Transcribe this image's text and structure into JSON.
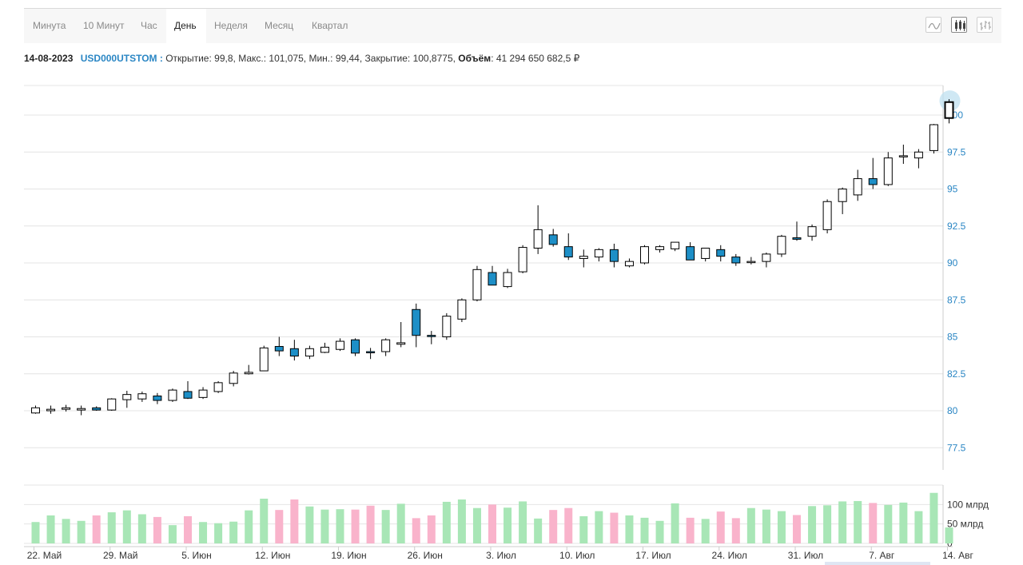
{
  "tabs": [
    {
      "label": "Минута",
      "active": false
    },
    {
      "label": "10 Минут",
      "active": false
    },
    {
      "label": "Час",
      "active": false
    },
    {
      "label": "День",
      "active": true
    },
    {
      "label": "Неделя",
      "active": false
    },
    {
      "label": "Месяц",
      "active": false
    },
    {
      "label": "Квартал",
      "active": false
    }
  ],
  "chart_types": [
    {
      "name": "line-chart-icon"
    },
    {
      "name": "candlestick-chart-icon",
      "active": true
    },
    {
      "name": "bar-chart-icon"
    }
  ],
  "info": {
    "date": "14-08-2023",
    "ticker": "USD000UTSTOM :",
    "open_label": "Открытие:",
    "open": "99,8,",
    "high_label": "Макс.:",
    "high": "101,075,",
    "low_label": "Мин.:",
    "low": "99,44,",
    "close_label": "Закрытие:",
    "close": "100,8775,",
    "volume_label": "Объём",
    "volume": ": 41 294 650 682,5 ₽"
  },
  "colors": {
    "up_fill": "#ffffff",
    "down_fill": "#1d8fc7",
    "vol_up": "#a8e6b6",
    "vol_down": "#f9b3cb",
    "grid": "#e4e4e4",
    "accent": "#2a86c4"
  },
  "chart_data": {
    "type": "candlestick",
    "price_axis": {
      "min": 76,
      "max": 102,
      "ticks": [
        "77.5",
        "80",
        "82.5",
        "85",
        "87.5",
        "90",
        "92.5",
        "95",
        "97.5",
        "100"
      ],
      "tick_values": [
        77.5,
        80,
        82.5,
        85,
        87.5,
        90,
        92.5,
        95,
        97.5,
        100
      ]
    },
    "volume_axis": {
      "max": 150,
      "unit": "млрд",
      "ticks": [
        "0",
        "50 млрд",
        "100 млрд"
      ],
      "tick_values": [
        0,
        50,
        100
      ]
    },
    "x_labels": [
      "22. Май",
      "29. Май",
      "5. Июн",
      "12. Июн",
      "19. Июн",
      "26. Июн",
      "3. Июл",
      "10. Июл",
      "17. Июл",
      "24. Июл",
      "31. Июл",
      "7. Авг",
      "14. Авг"
    ],
    "x_label_index": [
      0,
      5,
      10,
      15,
      20,
      25,
      30,
      35,
      40,
      45,
      50,
      55,
      60
    ],
    "candles": [
      [
        79.85,
        80.35,
        79.8,
        80.2
      ],
      [
        80.0,
        80.35,
        79.8,
        80.1
      ],
      [
        80.1,
        80.4,
        79.95,
        80.2
      ],
      [
        80.05,
        80.35,
        79.7,
        80.15
      ],
      [
        80.2,
        80.3,
        80.0,
        80.05
      ],
      [
        80.05,
        80.85,
        80.0,
        80.8
      ],
      [
        80.75,
        81.35,
        80.2,
        81.1
      ],
      [
        80.8,
        81.3,
        80.6,
        81.15
      ],
      [
        81.0,
        81.2,
        80.45,
        80.7
      ],
      [
        80.7,
        81.5,
        80.6,
        81.4
      ],
      [
        81.3,
        82.0,
        80.8,
        80.85
      ],
      [
        80.9,
        81.6,
        80.8,
        81.4
      ],
      [
        81.3,
        82.0,
        81.2,
        81.9
      ],
      [
        81.85,
        82.7,
        81.65,
        82.55
      ],
      [
        82.5,
        83.1,
        82.45,
        82.6
      ],
      [
        82.7,
        84.4,
        82.7,
        84.25
      ],
      [
        84.35,
        85.0,
        83.7,
        84.05
      ],
      [
        84.2,
        84.8,
        83.4,
        83.7
      ],
      [
        83.7,
        84.4,
        83.5,
        84.2
      ],
      [
        83.95,
        84.6,
        83.9,
        84.3
      ],
      [
        84.15,
        84.9,
        84.05,
        84.7
      ],
      [
        84.8,
        84.9,
        83.7,
        83.9
      ],
      [
        84.0,
        84.25,
        83.5,
        83.95
      ],
      [
        84.0,
        84.9,
        83.7,
        84.8
      ],
      [
        84.5,
        86.0,
        84.3,
        84.6
      ],
      [
        86.85,
        87.25,
        84.3,
        85.1
      ],
      [
        85.1,
        85.4,
        84.5,
        85.05
      ],
      [
        85.0,
        86.6,
        84.8,
        86.4
      ],
      [
        86.2,
        87.6,
        86.0,
        87.5
      ],
      [
        87.5,
        89.8,
        87.4,
        89.55
      ],
      [
        89.35,
        89.8,
        88.5,
        88.5
      ],
      [
        88.4,
        89.6,
        88.3,
        89.35
      ],
      [
        89.4,
        91.2,
        89.3,
        91.05
      ],
      [
        91.0,
        93.9,
        90.6,
        92.25
      ],
      [
        91.9,
        92.3,
        91.1,
        91.25
      ],
      [
        91.1,
        92.0,
        90.2,
        90.4
      ],
      [
        90.3,
        90.9,
        89.7,
        90.45
      ],
      [
        90.4,
        91.0,
        90.1,
        90.9
      ],
      [
        90.9,
        91.3,
        89.7,
        90.1
      ],
      [
        89.8,
        90.3,
        89.7,
        90.1
      ],
      [
        90.0,
        91.2,
        89.9,
        91.1
      ],
      [
        90.9,
        91.2,
        90.7,
        91.1
      ],
      [
        90.95,
        91.4,
        90.8,
        91.4
      ],
      [
        91.1,
        91.4,
        90.2,
        90.2
      ],
      [
        90.3,
        91.0,
        90.1,
        91.0
      ],
      [
        90.9,
        91.2,
        90.1,
        90.45
      ],
      [
        90.4,
        90.6,
        89.8,
        90.0
      ],
      [
        90.05,
        90.4,
        89.9,
        90.1
      ],
      [
        90.1,
        90.7,
        89.7,
        90.6
      ],
      [
        90.6,
        91.9,
        90.4,
        91.8
      ],
      [
        91.7,
        92.8,
        91.5,
        91.6
      ],
      [
        91.8,
        92.6,
        91.5,
        92.45
      ],
      [
        92.25,
        94.3,
        92.0,
        94.15
      ],
      [
        94.15,
        95.1,
        93.3,
        95.0
      ],
      [
        94.6,
        96.3,
        94.2,
        95.7
      ],
      [
        95.7,
        97.1,
        95.0,
        95.3
      ],
      [
        95.3,
        97.5,
        95.2,
        97.1
      ],
      [
        97.2,
        98.0,
        96.7,
        97.25
      ],
      [
        97.1,
        97.7,
        96.4,
        97.5
      ],
      [
        97.6,
        99.4,
        97.4,
        99.35
      ],
      [
        99.8,
        101.075,
        99.44,
        100.8775
      ]
    ],
    "volumes": [
      55,
      72,
      63,
      58,
      72,
      80,
      85,
      75,
      68,
      47,
      70,
      55,
      52,
      56,
      85,
      115,
      86,
      113,
      95,
      87,
      88,
      87,
      97,
      86,
      102,
      65,
      72,
      107,
      113,
      91,
      100,
      92,
      108,
      64,
      86,
      91,
      70,
      83,
      79,
      72,
      66,
      58,
      103,
      66,
      63,
      82,
      65,
      91,
      87,
      83,
      73,
      96,
      98,
      108,
      109,
      104,
      99,
      105,
      83,
      130,
      41
    ]
  }
}
